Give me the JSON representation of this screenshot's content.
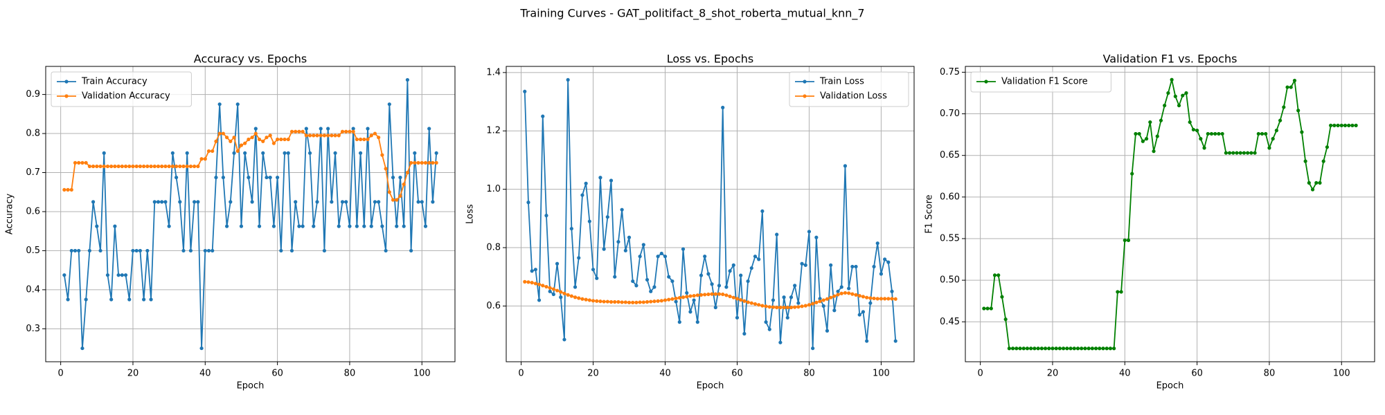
{
  "title": "Training Curves - GAT_politifact_8_shot_roberta_mutual_knn_7",
  "chart_data": [
    {
      "type": "line",
      "title": "Accuracy vs. Epochs",
      "xlabel": "Epoch",
      "ylabel": "Accuracy",
      "x": [
        1,
        2,
        3,
        4,
        5,
        6,
        7,
        8,
        9,
        10,
        11,
        12,
        13,
        14,
        15,
        16,
        17,
        18,
        19,
        20,
        21,
        22,
        23,
        24,
        25,
        26,
        27,
        28,
        29,
        30,
        31,
        32,
        33,
        34,
        35,
        36,
        37,
        38,
        39,
        40,
        41,
        42,
        43,
        44,
        45,
        46,
        47,
        48,
        49,
        50,
        51,
        52,
        53,
        54,
        55,
        56,
        57,
        58,
        59,
        60,
        61,
        62,
        63,
        64,
        65,
        66,
        67,
        68,
        69,
        70,
        71,
        72,
        73,
        74,
        75,
        76,
        77,
        78,
        79,
        80,
        81,
        82,
        83,
        84,
        85,
        86,
        87,
        88,
        89,
        90,
        91,
        92,
        93,
        94,
        95,
        96,
        97,
        98,
        99,
        100,
        101,
        102,
        103,
        104
      ],
      "series": [
        {
          "name": "Train Accuracy",
          "color": "#1f77b4",
          "values": [
            0.4375,
            0.375,
            0.5,
            0.5,
            0.5,
            0.25,
            0.375,
            0.5,
            0.625,
            0.5625,
            0.5,
            0.75,
            0.4375,
            0.375,
            0.5625,
            0.4375,
            0.4375,
            0.4375,
            0.375,
            0.5,
            0.5,
            0.5,
            0.375,
            0.5,
            0.375,
            0.625,
            0.625,
            0.625,
            0.625,
            0.5625,
            0.75,
            0.6875,
            0.625,
            0.5,
            0.75,
            0.5,
            0.625,
            0.625,
            0.25,
            0.5,
            0.5,
            0.5,
            0.6875,
            0.875,
            0.6875,
            0.5625,
            0.625,
            0.75,
            0.875,
            0.5625,
            0.75,
            0.6875,
            0.625,
            0.8125,
            0.5625,
            0.75,
            0.6875,
            0.6875,
            0.5625,
            0.6875,
            0.5,
            0.75,
            0.75,
            0.5,
            0.625,
            0.5625,
            0.5625,
            0.8125,
            0.75,
            0.5625,
            0.625,
            0.8125,
            0.5,
            0.8125,
            0.625,
            0.75,
            0.5625,
            0.625,
            0.625,
            0.5625,
            0.8125,
            0.5625,
            0.75,
            0.5625,
            0.8125,
            0.5625,
            0.625,
            0.625,
            0.5625,
            0.5,
            0.875,
            0.6875,
            0.5625,
            0.6875,
            0.5625,
            0.9375,
            0.5,
            0.75,
            0.625,
            0.625,
            0.5625,
            0.8125,
            0.625,
            0.75
          ]
        },
        {
          "name": "Validation Accuracy",
          "color": "#ff7f0e",
          "values": [
            0.656,
            0.656,
            0.656,
            0.725,
            0.725,
            0.725,
            0.725,
            0.716,
            0.716,
            0.716,
            0.716,
            0.716,
            0.716,
            0.716,
            0.716,
            0.716,
            0.716,
            0.716,
            0.716,
            0.716,
            0.716,
            0.716,
            0.716,
            0.716,
            0.716,
            0.716,
            0.716,
            0.716,
            0.716,
            0.716,
            0.716,
            0.716,
            0.716,
            0.716,
            0.716,
            0.716,
            0.716,
            0.716,
            0.735,
            0.735,
            0.755,
            0.755,
            0.78,
            0.8,
            0.8,
            0.79,
            0.78,
            0.79,
            0.755,
            0.77,
            0.775,
            0.785,
            0.79,
            0.8,
            0.785,
            0.78,
            0.79,
            0.795,
            0.775,
            0.785,
            0.785,
            0.785,
            0.785,
            0.805,
            0.805,
            0.805,
            0.805,
            0.795,
            0.795,
            0.795,
            0.795,
            0.795,
            0.795,
            0.795,
            0.795,
            0.795,
            0.795,
            0.805,
            0.805,
            0.805,
            0.805,
            0.785,
            0.785,
            0.785,
            0.785,
            0.795,
            0.8,
            0.79,
            0.745,
            0.71,
            0.65,
            0.63,
            0.63,
            0.64,
            0.67,
            0.7,
            0.725,
            0.725,
            0.725,
            0.725,
            0.725,
            0.725,
            0.725,
            0.725
          ]
        }
      ],
      "xlim": [
        -4.15,
        109.15
      ],
      "xticks": [
        0,
        20,
        40,
        60,
        80,
        100
      ],
      "ylim": [
        0.2156,
        0.9719
      ],
      "yticks": [
        0.3,
        0.4,
        0.5,
        0.6,
        0.7,
        0.8,
        0.9
      ],
      "grid": true,
      "legend": "upper left"
    },
    {
      "type": "line",
      "title": "Loss vs. Epochs",
      "xlabel": "Epoch",
      "ylabel": "Loss",
      "x": [
        1,
        2,
        3,
        4,
        5,
        6,
        7,
        8,
        9,
        10,
        11,
        12,
        13,
        14,
        15,
        16,
        17,
        18,
        19,
        20,
        21,
        22,
        23,
        24,
        25,
        26,
        27,
        28,
        29,
        30,
        31,
        32,
        33,
        34,
        35,
        36,
        37,
        38,
        39,
        40,
        41,
        42,
        43,
        44,
        45,
        46,
        47,
        48,
        49,
        50,
        51,
        52,
        53,
        54,
        55,
        56,
        57,
        58,
        59,
        60,
        61,
        62,
        63,
        64,
        65,
        66,
        67,
        68,
        69,
        70,
        71,
        72,
        73,
        74,
        75,
        76,
        77,
        78,
        79,
        80,
        81,
        82,
        83,
        84,
        85,
        86,
        87,
        88,
        89,
        90,
        91,
        92,
        93,
        94,
        95,
        96,
        97,
        98,
        99,
        100,
        101,
        102,
        103,
        104
      ],
      "series": [
        {
          "name": "Train Loss",
          "color": "#1f77b4",
          "values": [
            1.335,
            0.955,
            0.72,
            0.725,
            0.62,
            1.25,
            0.91,
            0.65,
            0.64,
            0.745,
            0.63,
            0.485,
            1.375,
            0.865,
            0.665,
            0.765,
            0.98,
            1.02,
            0.89,
            0.725,
            0.695,
            1.04,
            0.795,
            0.905,
            1.03,
            0.7,
            0.82,
            0.93,
            0.79,
            0.835,
            0.685,
            0.67,
            0.77,
            0.81,
            0.69,
            0.65,
            0.665,
            0.77,
            0.78,
            0.77,
            0.7,
            0.685,
            0.615,
            0.545,
            0.795,
            0.645,
            0.58,
            0.62,
            0.545,
            0.705,
            0.77,
            0.71,
            0.675,
            0.595,
            0.67,
            1.28,
            0.665,
            0.72,
            0.74,
            0.56,
            0.705,
            0.505,
            0.685,
            0.73,
            0.77,
            0.76,
            0.925,
            0.545,
            0.52,
            0.62,
            0.845,
            0.475,
            0.63,
            0.56,
            0.63,
            0.67,
            0.61,
            0.745,
            0.74,
            0.855,
            0.455,
            0.835,
            0.625,
            0.6,
            0.515,
            0.74,
            0.585,
            0.65,
            0.665,
            1.08,
            0.66,
            0.735,
            0.735,
            0.57,
            0.58,
            0.48,
            0.61,
            0.735,
            0.815,
            0.71,
            0.76,
            0.75,
            0.65,
            0.48
          ]
        },
        {
          "name": "Validation Loss",
          "color": "#ff7f0e",
          "values": [
            0.683,
            0.682,
            0.68,
            0.677,
            0.674,
            0.67,
            0.666,
            0.662,
            0.658,
            0.653,
            0.648,
            0.643,
            0.638,
            0.634,
            0.63,
            0.627,
            0.624,
            0.622,
            0.62,
            0.618,
            0.617,
            0.616,
            0.615,
            0.615,
            0.614,
            0.614,
            0.614,
            0.613,
            0.613,
            0.612,
            0.612,
            0.612,
            0.613,
            0.613,
            0.614,
            0.615,
            0.616,
            0.617,
            0.618,
            0.62,
            0.622,
            0.624,
            0.626,
            0.628,
            0.63,
            0.632,
            0.634,
            0.635,
            0.637,
            0.638,
            0.639,
            0.64,
            0.641,
            0.641,
            0.641,
            0.64,
            0.637,
            0.633,
            0.629,
            0.625,
            0.621,
            0.617,
            0.613,
            0.61,
            0.607,
            0.604,
            0.601,
            0.599,
            0.597,
            0.596,
            0.595,
            0.595,
            0.595,
            0.595,
            0.595,
            0.596,
            0.597,
            0.599,
            0.601,
            0.604,
            0.608,
            0.612,
            0.616,
            0.62,
            0.624,
            0.629,
            0.634,
            0.639,
            0.643,
            0.645,
            0.644,
            0.641,
            0.638,
            0.635,
            0.632,
            0.629,
            0.627,
            0.626,
            0.625,
            0.625,
            0.625,
            0.625,
            0.625,
            0.624
          ]
        }
      ],
      "xlim": [
        -4.15,
        109.15
      ],
      "xticks": [
        0,
        20,
        40,
        60,
        80,
        100
      ],
      "ylim": [
        0.409,
        1.421
      ],
      "yticks": [
        0.6,
        0.8,
        {
          "value": 1,
          "label": "1.0"
        },
        1.2,
        1.4
      ],
      "grid": true,
      "legend": "upper right"
    },
    {
      "type": "line",
      "title": "Validation F1 vs. Epochs",
      "xlabel": "Epoch",
      "ylabel": "F1 Score",
      "x": [
        1,
        2,
        3,
        4,
        5,
        6,
        7,
        8,
        9,
        10,
        11,
        12,
        13,
        14,
        15,
        16,
        17,
        18,
        19,
        20,
        21,
        22,
        23,
        24,
        25,
        26,
        27,
        28,
        29,
        30,
        31,
        32,
        33,
        34,
        35,
        36,
        37,
        38,
        39,
        40,
        41,
        42,
        43,
        44,
        45,
        46,
        47,
        48,
        49,
        50,
        51,
        52,
        53,
        54,
        55,
        56,
        57,
        58,
        59,
        60,
        61,
        62,
        63,
        64,
        65,
        66,
        67,
        68,
        69,
        70,
        71,
        72,
        73,
        74,
        75,
        76,
        77,
        78,
        79,
        80,
        81,
        82,
        83,
        84,
        85,
        86,
        87,
        88,
        89,
        90,
        91,
        92,
        93,
        94,
        95,
        96,
        97,
        98,
        99,
        100,
        101,
        102,
        103,
        104
      ],
      "series": [
        {
          "name": "Validation F1 Score",
          "color": "#008000",
          "values": [
            0.466,
            0.466,
            0.466,
            0.506,
            0.506,
            0.48,
            0.453,
            0.418,
            0.418,
            0.418,
            0.418,
            0.418,
            0.418,
            0.418,
            0.418,
            0.418,
            0.418,
            0.418,
            0.418,
            0.418,
            0.418,
            0.418,
            0.418,
            0.418,
            0.418,
            0.418,
            0.418,
            0.418,
            0.418,
            0.418,
            0.418,
            0.418,
            0.418,
            0.418,
            0.418,
            0.418,
            0.418,
            0.486,
            0.486,
            0.548,
            0.548,
            0.628,
            0.676,
            0.676,
            0.667,
            0.67,
            0.69,
            0.655,
            0.673,
            0.692,
            0.71,
            0.725,
            0.741,
            0.721,
            0.71,
            0.722,
            0.725,
            0.69,
            0.681,
            0.68,
            0.67,
            0.659,
            0.676,
            0.676,
            0.676,
            0.676,
            0.676,
            0.653,
            0.653,
            0.653,
            0.653,
            0.653,
            0.653,
            0.653,
            0.653,
            0.653,
            0.676,
            0.676,
            0.676,
            0.659,
            0.67,
            0.68,
            0.692,
            0.708,
            0.732,
            0.732,
            0.74,
            0.704,
            0.678,
            0.643,
            0.617,
            0.609,
            0.617,
            0.617,
            0.643,
            0.66,
            0.686,
            0.686,
            0.686,
            0.686,
            0.686,
            0.686,
            0.686,
            0.686
          ]
        }
      ],
      "xlim": [
        -4.15,
        109.15
      ],
      "xticks": [
        0,
        20,
        40,
        60,
        80,
        100
      ],
      "ylim": [
        0.402,
        0.757
      ],
      "yticks": [
        0.45,
        {
          "value": 0.5,
          "label": "0.50"
        },
        0.55,
        {
          "value": 0.6,
          "label": "0.60"
        },
        0.65,
        {
          "value": 0.7,
          "label": "0.70"
        },
        0.75
      ],
      "grid": true,
      "legend": "upper left"
    }
  ]
}
